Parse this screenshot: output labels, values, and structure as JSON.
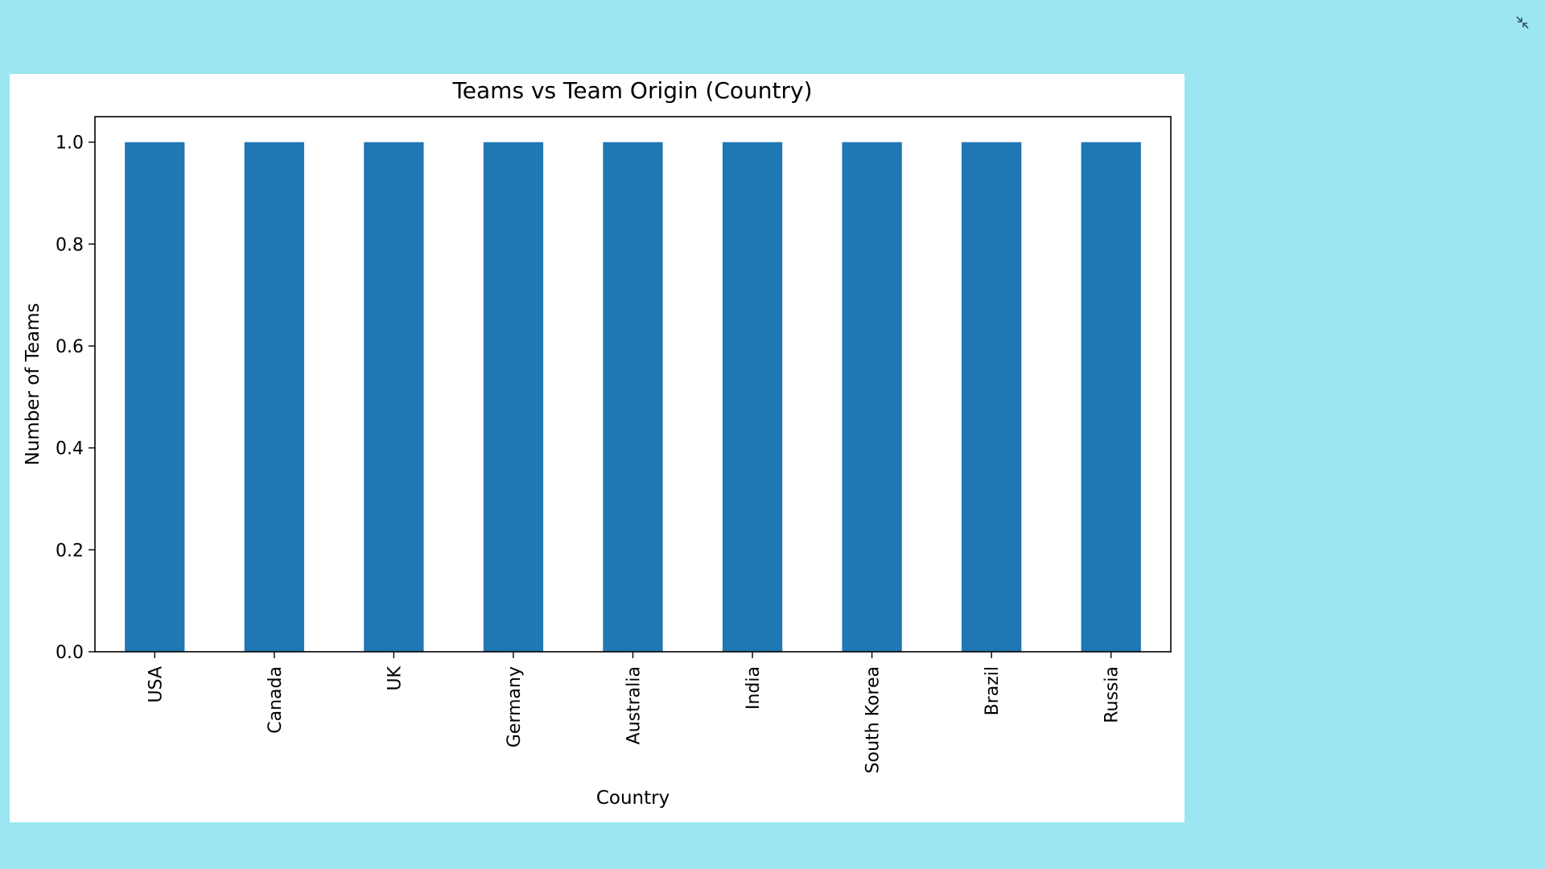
{
  "colors": {
    "background": "#9be6f0",
    "bar": "#1f77b4",
    "axis": "#000000",
    "icon": "#3a5560"
  },
  "window": {
    "collapse_icon": "collapse-icon"
  },
  "chart_data": {
    "type": "bar",
    "title": "Teams vs Team Origin (Country)",
    "xlabel": "Country",
    "ylabel": "Number of Teams",
    "categories": [
      "USA",
      "Canada",
      "UK",
      "Germany",
      "Australia",
      "India",
      "South Korea",
      "Brazil",
      "Russia"
    ],
    "values": [
      1,
      1,
      1,
      1,
      1,
      1,
      1,
      1,
      1
    ],
    "ylim": [
      0,
      1.05
    ],
    "yticks": [
      "0.0",
      "0.2",
      "0.4",
      "0.6",
      "0.8",
      "1.0"
    ],
    "grid": false,
    "legend": "none"
  }
}
